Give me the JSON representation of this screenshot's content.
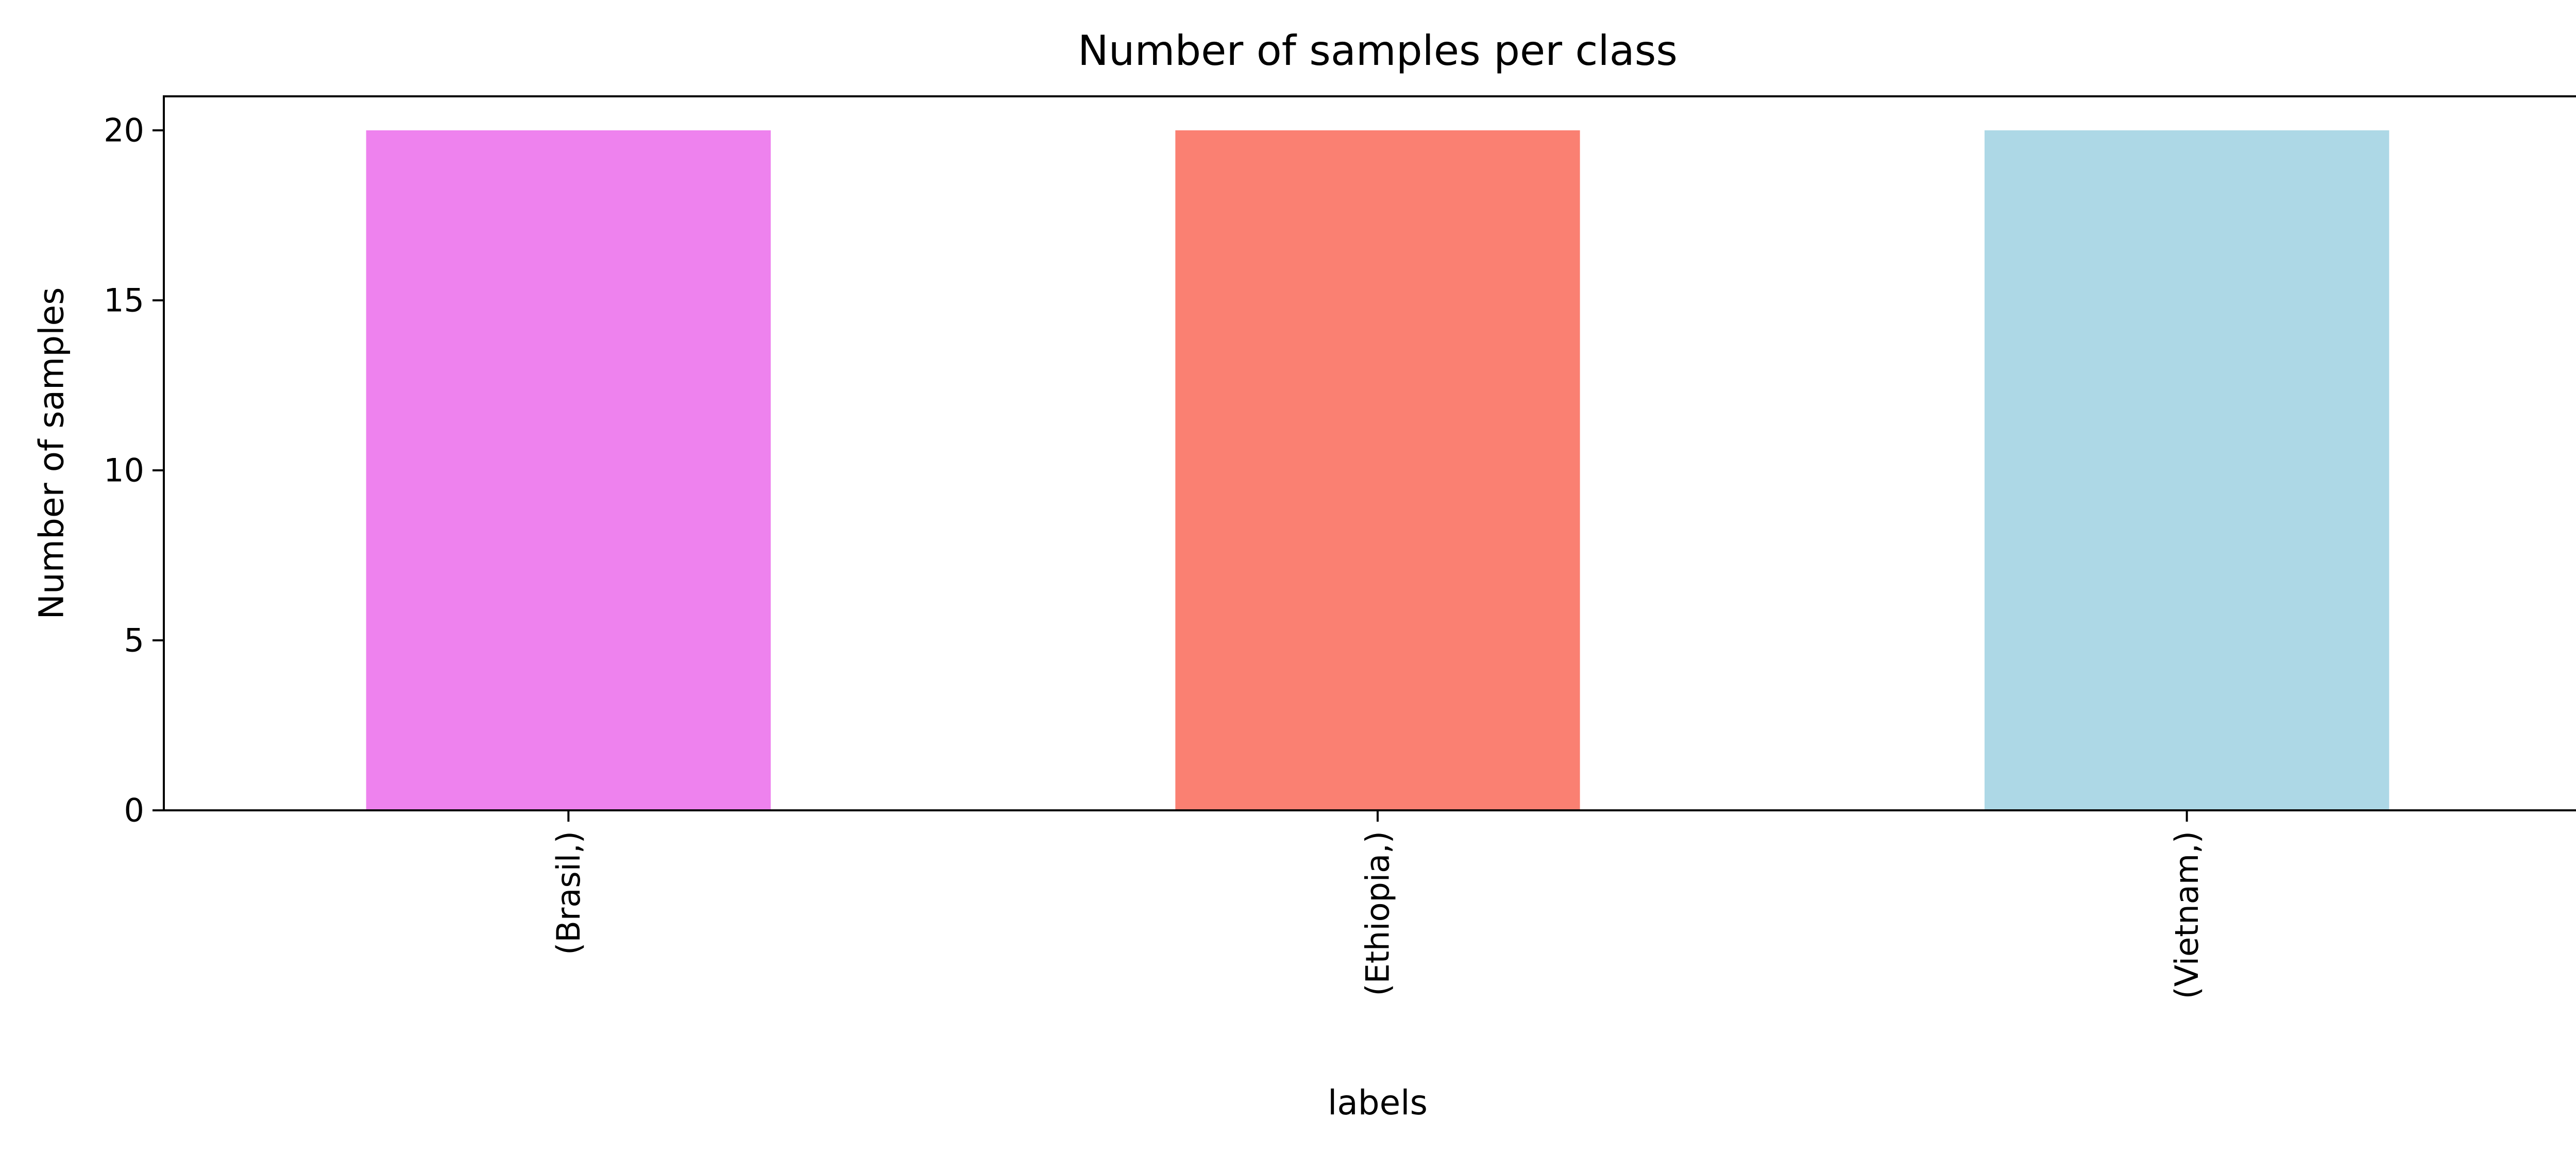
{
  "chart_data": {
    "type": "bar",
    "title": "Number of samples per class",
    "xlabel": "labels",
    "ylabel": "Number of samples",
    "categories": [
      "(Brasil,)",
      "(Ethiopia,)",
      "(Vietnam,)"
    ],
    "values": [
      20,
      20,
      20
    ],
    "colors": [
      "#ee82ee",
      "#fa8072",
      "#add8e6"
    ],
    "ylim": [
      0,
      21
    ],
    "yticks": [
      0,
      5,
      10,
      15,
      20
    ],
    "grid": false,
    "legend": null
  }
}
